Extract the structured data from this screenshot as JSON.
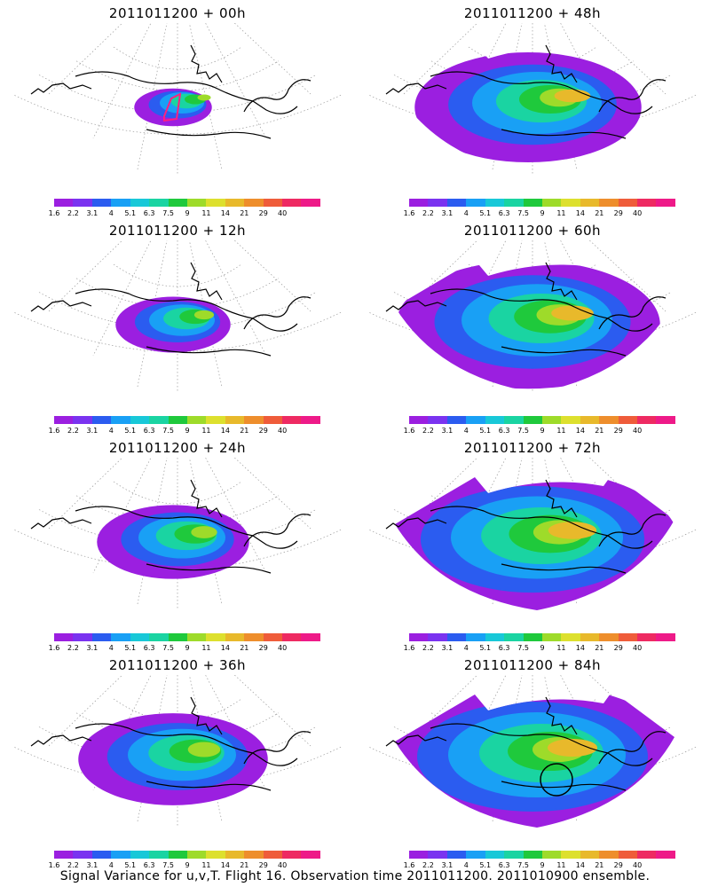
{
  "panels": [
    {
      "title": "2011011200 + 00h",
      "lead": 0
    },
    {
      "title": "2011011200 + 48h",
      "lead": 48
    },
    {
      "title": "2011011200 + 12h",
      "lead": 12
    },
    {
      "title": "2011011200 + 60h",
      "lead": 60
    },
    {
      "title": "2011011200 + 24h",
      "lead": 24
    },
    {
      "title": "2011011200 + 72h",
      "lead": 72
    },
    {
      "title": "2011011200 + 36h",
      "lead": 36
    },
    {
      "title": "2011011200 + 84h",
      "lead": 84
    }
  ],
  "colorbar": {
    "labels": [
      "1.6",
      "2.2",
      "3.1",
      "4",
      "5.1",
      "6.3",
      "7.5",
      "9",
      "11",
      "14",
      "21",
      "29",
      "40"
    ],
    "colors": [
      "#9b1fe0",
      "#7a33f0",
      "#2b5cf0",
      "#19a0f5",
      "#18c8d8",
      "#1ad4a2",
      "#1fc93c",
      "#9edb2a",
      "#dde02e",
      "#e8b92b",
      "#ee8e2c",
      "#ef5c3a",
      "#ee2a62",
      "#ee1a88"
    ]
  },
  "caption": "Signal Variance for u,v,T. Flight 16. Observation time 2011011200. 2011010900 ensemble.",
  "map": {
    "field_colors": {
      "low": "#9b1fe0",
      "mid": "#19a0f5",
      "high": "#1fc93c",
      "peak": "#e8b92b"
    }
  }
}
